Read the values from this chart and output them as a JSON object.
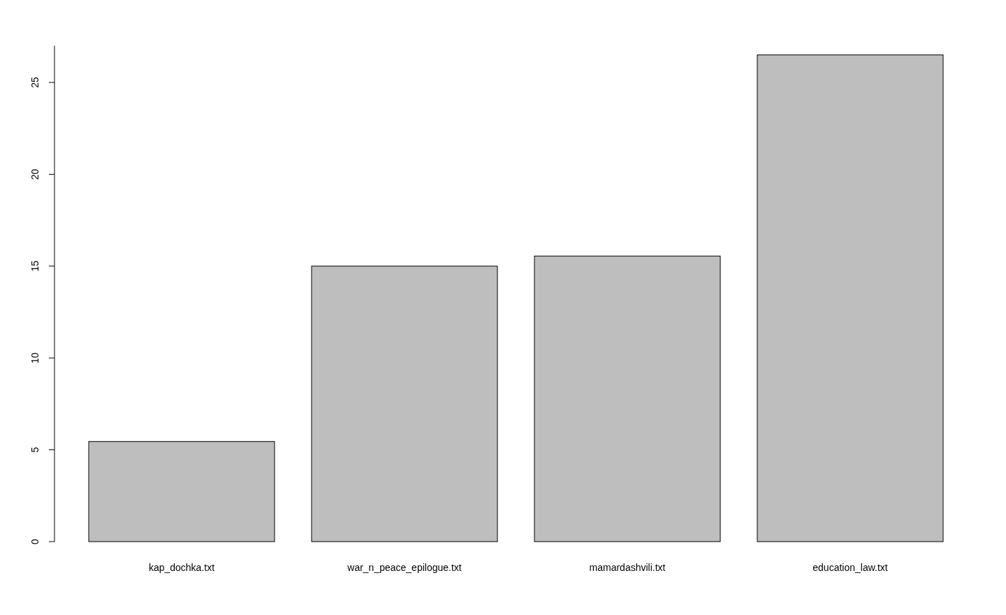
{
  "chart_data": {
    "type": "bar",
    "categories": [
      "kap_dochka.txt",
      "war_n_peace_epilogue.txt",
      "mamardashvili.txt",
      "education_law.txt"
    ],
    "values": [
      5.45,
      15.0,
      15.55,
      26.5
    ],
    "color": "#bebebe",
    "ylim": [
      0,
      27
    ],
    "yticks": [
      0,
      5,
      10,
      15,
      20,
      25
    ],
    "grid": false
  }
}
